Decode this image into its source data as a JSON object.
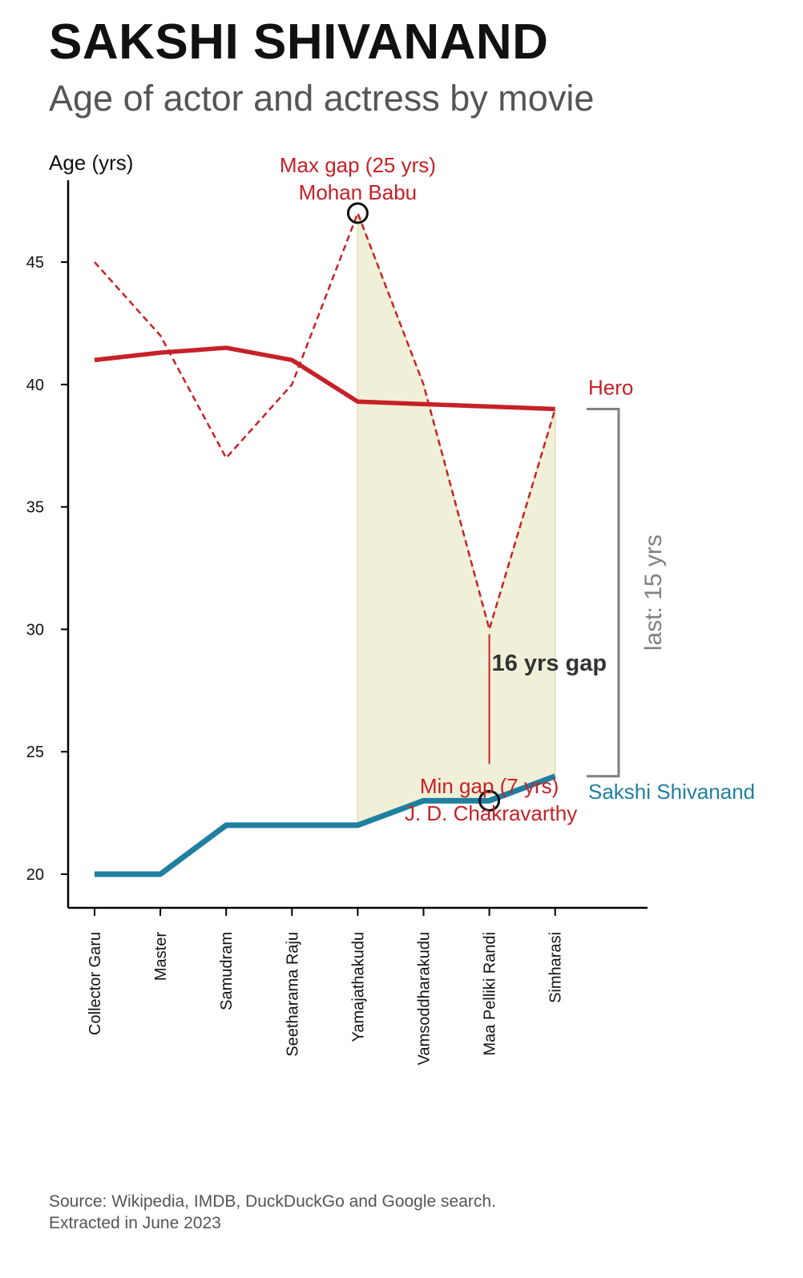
{
  "header": {
    "title": "SAKSHI SHIVANAND",
    "subtitle": "Age of actor and actress by movie"
  },
  "footer": {
    "source_line1": "Source: Wikipedia, IMDB, DuckDuckGo and Google search.",
    "source_line2": "Extracted in June 2023"
  },
  "colors": {
    "hero": "#c62127",
    "actress": "#1f7fa0",
    "gap_fill": "#f0f0d8",
    "bracket": "#808080",
    "gap_text": "#333333"
  },
  "chart_data": {
    "type": "line",
    "ylabel": "Age (yrs)",
    "xlabel": "",
    "ylim": [
      18.7,
      47.7
    ],
    "yticks": [
      20,
      25,
      30,
      35,
      40,
      45
    ],
    "categories": [
      "Collector Garu",
      "Master",
      "Samudram",
      "Seetharama Raju",
      "Yamajathakudu",
      "Vamsoddharakudu",
      "Maa Pelliki Randi",
      "Simharasi"
    ],
    "series": [
      {
        "name": "Hero",
        "style": "solid",
        "values": [
          41.0,
          41.3,
          41.5,
          41.0,
          39.3,
          39.2,
          39.1,
          39.0
        ]
      },
      {
        "name": "",
        "style": "dashed",
        "values": [
          45,
          42,
          37,
          40,
          47,
          40,
          30,
          39
        ]
      },
      {
        "name": "Sakshi Shivanand",
        "style": "solid",
        "values": [
          20,
          20,
          22,
          22,
          22,
          23,
          23,
          24
        ]
      }
    ],
    "annotations": {
      "max_gap": {
        "line1": "Max gap (25 yrs)",
        "line2": "Mohan Babu",
        "index": 4,
        "y": 47
      },
      "min_gap": {
        "line1": "Min gap (7 yrs)",
        "line2": "J. D. Chakravarthy",
        "index": 6,
        "y": 23
      },
      "gap_label": {
        "text": "16 yrs gap",
        "index": 6,
        "y_from": 24.5,
        "y_to": 29.8
      },
      "bracket": {
        "text": "last: 15 yrs",
        "y_from": 24,
        "y_to": 39
      },
      "shaded_range": {
        "from_index": 4,
        "to_index": 7
      }
    }
  }
}
